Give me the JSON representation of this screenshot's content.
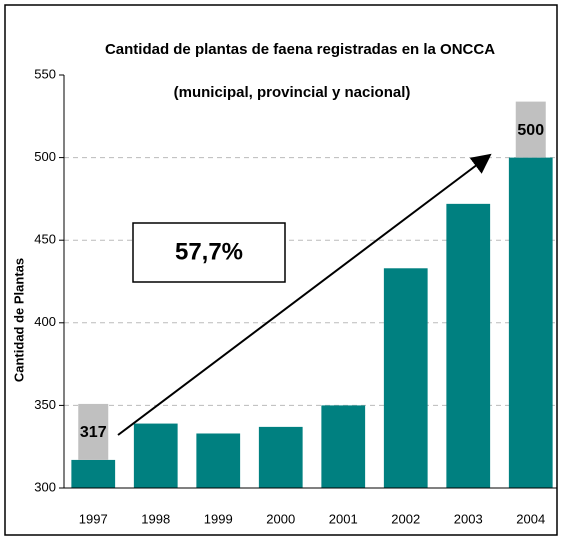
{
  "chart_data": {
    "type": "bar",
    "title": "Cantidad de plantas de faena registradas en la ONCCA",
    "subtitle": "(municipal, provincial y nacional)",
    "y_label": "Cantidad de Plantas",
    "annotation": "57,7%",
    "categories": [
      "1997",
      "1998",
      "1999",
      "2000",
      "2001",
      "2002",
      "2003",
      "2004"
    ],
    "values": [
      317,
      339,
      333,
      337,
      350,
      433,
      472,
      500
    ],
    "value_labels": [
      "317",
      null,
      null,
      null,
      null,
      null,
      null,
      "500"
    ],
    "color": "#008080",
    "ylim": [
      300,
      550
    ],
    "yticks": [
      300,
      350,
      400,
      450,
      500,
      550
    ],
    "grid": true
  }
}
